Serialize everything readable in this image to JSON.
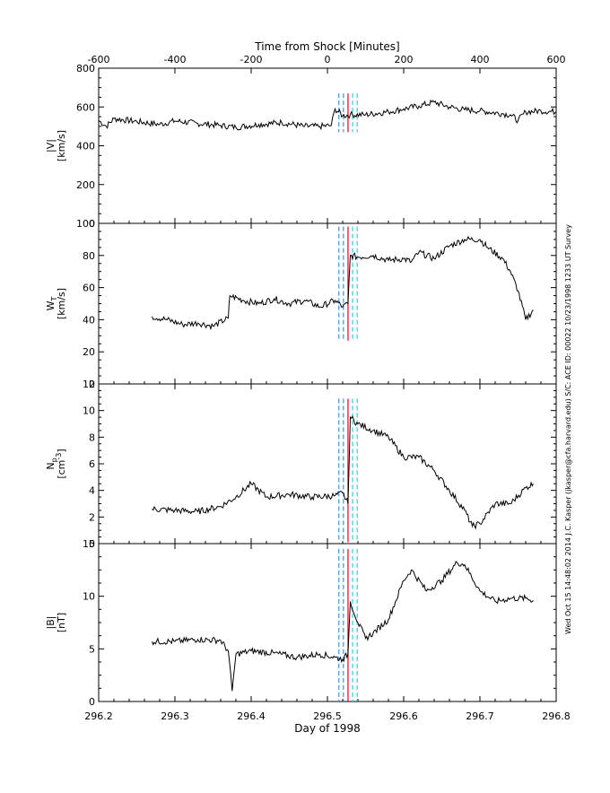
{
  "figure": {
    "top_axis_title": "Time from Shock [Minutes]",
    "bottom_axis_title": "Day of 1998",
    "side_caption": "Wed Oct 15 14:48:02 2014    J.C. Kasper (jkasper@cfa.harvard.edu)    S/C: ACE ID: 00022 10/23/1998   1233 UT Survey"
  },
  "chart_data": [
    {
      "type": "line",
      "panel": "speed",
      "ylabel_line1": "|V|",
      "ylabel_line2": "[km/s]",
      "xlim": [
        296.2,
        296.8
      ],
      "ylim": [
        0,
        800
      ],
      "yticks": [
        0,
        200,
        400,
        600,
        800
      ],
      "top_xlim": [
        -600,
        600
      ],
      "top_xticks": [
        -600,
        -400,
        -200,
        0,
        200,
        400,
        600
      ],
      "marker_lines": {
        "ymin": 470,
        "ymax": 670
      },
      "x": [
        296.2,
        296.21,
        296.22,
        296.25,
        296.28,
        296.3,
        296.33,
        296.36,
        296.38,
        296.41,
        296.44,
        296.47,
        296.49,
        296.505,
        296.51,
        296.52,
        296.53,
        296.55,
        296.58,
        296.6,
        296.62,
        296.64,
        296.66,
        296.68,
        296.7,
        296.73,
        296.74,
        296.75,
        296.76,
        296.78,
        296.8
      ],
      "y": [
        530,
        500,
        540,
        525,
        510,
        528,
        515,
        505,
        495,
        510,
        520,
        500,
        500,
        505,
        590,
        555,
        560,
        560,
        575,
        590,
        605,
        625,
        600,
        585,
        580,
        565,
        560,
        530,
        575,
        580,
        575
      ]
    },
    {
      "type": "line",
      "panel": "thermal",
      "ylabel_line1": "W",
      "ylabel_sub": "T",
      "ylabel_line2": "[km/s]",
      "xlim": [
        296.2,
        296.8
      ],
      "ylim": [
        0,
        100
      ],
      "yticks": [
        0,
        20,
        40,
        60,
        80,
        100
      ],
      "marker_lines": {
        "ymin": 27,
        "ymax": 98
      },
      "x": [
        296.27,
        296.29,
        296.31,
        296.33,
        296.35,
        296.37,
        296.372,
        296.39,
        296.41,
        296.43,
        296.45,
        296.47,
        296.49,
        296.51,
        296.52,
        296.527,
        296.53,
        296.54,
        296.56,
        296.58,
        296.6,
        296.61,
        296.62,
        296.64,
        296.66,
        296.68,
        296.7,
        296.71,
        296.73,
        296.74,
        296.75,
        296.76,
        296.77
      ],
      "y": [
        42,
        40,
        37,
        38,
        36,
        41,
        55,
        52,
        50,
        53,
        50,
        52,
        48,
        52,
        48,
        50,
        80,
        79,
        80,
        77,
        78,
        76,
        82,
        78,
        86,
        90,
        90,
        85,
        78,
        70,
        58,
        40,
        46
      ]
    },
    {
      "type": "line",
      "panel": "density",
      "ylabel_line1": "N",
      "ylabel_sub": "p",
      "ylabel_line2": "[cm",
      "ylabel_sup": "-3",
      "ylabel_line2_end": "]",
      "xlim": [
        296.2,
        296.8
      ],
      "ylim": [
        0,
        12
      ],
      "yticks": [
        0,
        2,
        4,
        6,
        8,
        10,
        12
      ],
      "marker_lines": {
        "ymin": 0.1,
        "ymax": 10.9
      },
      "x": [
        296.27,
        296.3,
        296.33,
        296.36,
        296.38,
        296.4,
        296.42,
        296.45,
        296.48,
        296.51,
        296.52,
        296.527,
        296.53,
        296.54,
        296.56,
        296.58,
        296.6,
        296.62,
        296.64,
        296.66,
        296.68,
        296.69,
        296.7,
        296.72,
        296.74,
        296.76,
        296.77
      ],
      "y": [
        2.6,
        2.5,
        2.4,
        2.8,
        3.5,
        4.5,
        3.5,
        3.7,
        3.5,
        3.6,
        3.8,
        3.0,
        9.5,
        9.0,
        8.5,
        8.0,
        6.5,
        6.5,
        5.5,
        4.0,
        2.5,
        1.3,
        1.5,
        3.0,
        3.0,
        4.2,
        4.5
      ]
    },
    {
      "type": "line",
      "panel": "field",
      "ylabel_line1": "|B|",
      "ylabel_line2": "[nT]",
      "xlim": [
        296.2,
        296.8
      ],
      "ylim": [
        0,
        15
      ],
      "yticks": [
        0,
        5,
        10,
        15
      ],
      "xticks": [
        296.2,
        296.3,
        296.4,
        296.5,
        296.6,
        296.7,
        296.8
      ],
      "xtick_labels": [
        "296.2",
        "296.3",
        "296.4",
        "296.5",
        "296.6",
        "296.7",
        "296.8"
      ],
      "marker_lines": {
        "ymin": 0,
        "ymax": 14.5
      },
      "x": [
        296.27,
        296.3,
        296.33,
        296.36,
        296.37,
        296.375,
        296.38,
        296.4,
        296.43,
        296.46,
        296.49,
        296.51,
        296.52,
        296.527,
        296.53,
        296.54,
        296.55,
        296.56,
        296.58,
        296.6,
        296.61,
        296.63,
        296.65,
        296.67,
        296.68,
        296.7,
        296.72,
        296.74,
        296.76,
        296.77
      ],
      "y": [
        5.7,
        5.7,
        5.9,
        5.8,
        4.8,
        1.0,
        4.5,
        4.8,
        4.6,
        4.2,
        4.5,
        4.2,
        4.0,
        4.5,
        9.5,
        7.5,
        6.0,
        6.5,
        7.8,
        11.5,
        12.5,
        10.5,
        11.5,
        13.2,
        13.0,
        10.5,
        9.5,
        9.8,
        9.8,
        9.6
      ]
    }
  ],
  "markers": [
    {
      "x": 296.515,
      "color": "#3b8fd9",
      "style": "dashed"
    },
    {
      "x": 296.521,
      "color": "#3b8fd9",
      "style": "dashed"
    },
    {
      "x": 296.527,
      "color": "#e4002b",
      "style": "solid"
    },
    {
      "x": 296.533,
      "color": "#2ccfd2",
      "style": "dashed"
    },
    {
      "x": 296.539,
      "color": "#2ccfd2",
      "style": "dashed"
    }
  ]
}
